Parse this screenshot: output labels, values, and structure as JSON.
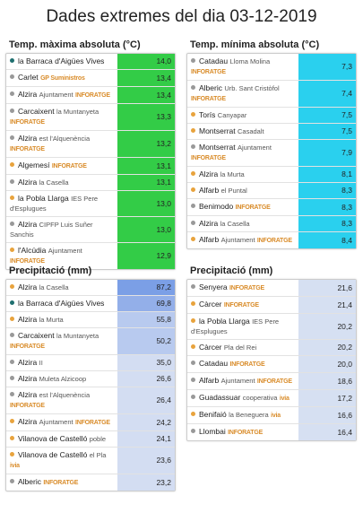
{
  "title": "Dades extremes del dia 03-12-2019",
  "sections": [
    {
      "title": "Temp. màxima absoluta (°C)",
      "rows": [
        {
          "dot": "#1f6f6f",
          "name": "la Barraca d'Aigües Vives",
          "value": "14,0"
        },
        {
          "dot": "#999999",
          "name": "Carlet",
          "tag": "GP Suministros",
          "value": "13,4"
        },
        {
          "dot": "#999999",
          "name": "Alzira",
          "detail": "Ajuntament",
          "tag": "INFORATGE",
          "value": "13,4"
        },
        {
          "dot": "#999999",
          "name": "Carcaixent",
          "detail": "la Muntanyeta",
          "tag": "INFORATGE",
          "value": "13,3"
        },
        {
          "dot": "#999999",
          "name": "Alzira",
          "detail": "est l'Alquenència",
          "tag": "INFORATGE",
          "value": "13,2"
        },
        {
          "dot": "#e8a33d",
          "name": "Algemesí",
          "tag": "INFORATGE",
          "value": "13,1"
        },
        {
          "dot": "#999999",
          "name": "Alzira",
          "detail": "la Casella",
          "value": "13,1"
        },
        {
          "dot": "#e8a33d",
          "name": "la Pobla Llarga",
          "detail": "IES Pere d'Esplugues",
          "value": "13,0"
        },
        {
          "dot": "#999999",
          "name": "Alzira",
          "detail": "CIPFP Luis Suñer Sanchis",
          "value": "13,0"
        },
        {
          "dot": "#e8a33d",
          "name": "l'Alcúdia",
          "detail": "Ajuntament",
          "tag": "INFORATGE",
          "value": "12,9"
        }
      ]
    },
    {
      "title": "Temp. mínima absoluta (°C)",
      "rows": [
        {
          "dot": "#999999",
          "name": "Catadau",
          "detail": "Lloma Molina",
          "tag": "INFORATGE",
          "value": "7,3"
        },
        {
          "dot": "#999999",
          "name": "Alberic",
          "detail": "Urb. Sant Cristòfol",
          "tag": "INFORATGE",
          "value": "7,4"
        },
        {
          "dot": "#e8a33d",
          "name": "Torís",
          "detail": "Canyapar",
          "value": "7,5"
        },
        {
          "dot": "#e8a33d",
          "name": "Montserrat",
          "detail": "Casadalt",
          "value": "7,5"
        },
        {
          "dot": "#999999",
          "name": "Montserrat",
          "detail": "Ajuntament",
          "tag": "INFORATGE",
          "value": "7,9"
        },
        {
          "dot": "#e8a33d",
          "name": "Alzira",
          "detail": "la Murta",
          "value": "8,1"
        },
        {
          "dot": "#e8a33d",
          "name": "Alfarb",
          "detail": "el Puntal",
          "value": "8,3"
        },
        {
          "dot": "#999999",
          "name": "Benimodo",
          "tag": "INFORATGE",
          "value": "8,3"
        },
        {
          "dot": "#999999",
          "name": "Alzira",
          "detail": "la Casella",
          "value": "8,3"
        },
        {
          "dot": "#e8a33d",
          "name": "Alfarb",
          "detail": "Ajuntament",
          "tag": "INFORATGE",
          "value": "8,4"
        }
      ]
    },
    {
      "title": "Precipitació (mm)",
      "rows": [
        {
          "dot": "#e8a33d",
          "name": "Alzira",
          "detail": "la Casella",
          "value": "87,2"
        },
        {
          "dot": "#1f6f6f",
          "name": "la Barraca d'Aigües Vives",
          "value": "69,8"
        },
        {
          "dot": "#e8a33d",
          "name": "Alzira",
          "detail": "la Murta",
          "value": "55,8"
        },
        {
          "dot": "#999999",
          "name": "Carcaixent",
          "detail": "la Muntanyeta",
          "tag": "INFORATGE",
          "value": "50,2"
        },
        {
          "dot": "#999999",
          "name": "Alzira",
          "detail": "II",
          "value": "35,0"
        },
        {
          "dot": "#999999",
          "name": "Alzira",
          "detail": "Muleta Alzicoop",
          "value": "26,6"
        },
        {
          "dot": "#999999",
          "name": "Alzira",
          "detail": "est l'Alquenència",
          "tag": "INFORATGE",
          "value": "26,4"
        },
        {
          "dot": "#e8a33d",
          "name": "Alzira",
          "detail": "Ajuntament",
          "tag": "INFORATGE",
          "value": "24,2"
        },
        {
          "dot": "#e8a33d",
          "name": "Vilanova de Castelló",
          "detail": "poble",
          "value": "24,1"
        },
        {
          "dot": "#e8a33d",
          "name": "Vilanova de Castelló",
          "detail": "el Pla",
          "tag": "ivia",
          "value": "23,6"
        },
        {
          "dot": "#999999",
          "name": "Alberic",
          "tag": "INFORATGE",
          "value": "23,2"
        }
      ]
    },
    {
      "title": "Precipitació (mm)",
      "rows": [
        {
          "dot": "#999999",
          "name": "Senyera",
          "tag": "INFORATGE",
          "value": "21,6"
        },
        {
          "dot": "#e8a33d",
          "name": "Càrcer",
          "tag": "INFORATGE",
          "value": "21,4"
        },
        {
          "dot": "#e8a33d",
          "name": "la Pobla Llarga",
          "detail": "IES Pere d'Esplugues",
          "value": "20,2"
        },
        {
          "dot": "#e8a33d",
          "name": "Càrcer",
          "detail": "Pla del Rei",
          "value": "20,2"
        },
        {
          "dot": "#999999",
          "name": "Catadau",
          "tag": "INFORATGE",
          "value": "20,0"
        },
        {
          "dot": "#999999",
          "name": "Alfarb",
          "detail": "Ajuntament",
          "tag": "INFORATGE",
          "value": "18,6"
        },
        {
          "dot": "#999999",
          "name": "Guadassuar",
          "detail": "cooperativa",
          "tag": "ivia",
          "value": "17,2"
        },
        {
          "dot": "#e8a33d",
          "name": "Benifaió",
          "detail": "la Beneguera",
          "tag": "ivia",
          "value": "16,6"
        },
        {
          "dot": "#999999",
          "name": "Llombai",
          "tag": "INFORATGE",
          "value": "16,4"
        }
      ]
    }
  ]
}
